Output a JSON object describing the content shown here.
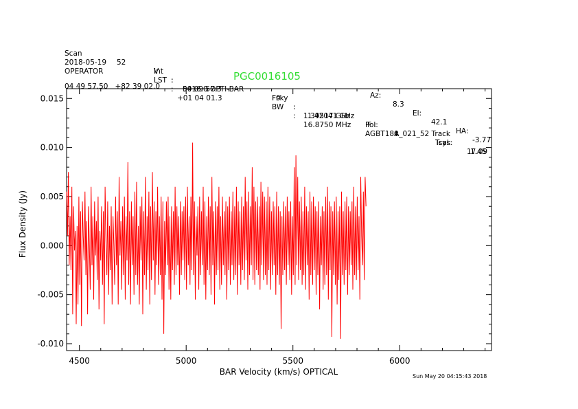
{
  "header": {
    "rows": [
      [
        "Scan",
        "52",
        "V",
        ":",
        "5416.0 OPTI-BAR",
        "F0",
        ":",
        "1.42041 GHz",
        "Pol:",
        "I",
        "Tsys:",
        "17.09"
      ],
      [
        "2018-05-19",
        "",
        "Int",
        ":",
        "00 09 57.3",
        "Fsky",
        ":",
        "1.39517 GHz",
        "IF :",
        "0",
        "Tcal:",
        "1.45"
      ],
      [
        "OPERATOR",
        "",
        "LST",
        ":",
        "+01 04 01.3",
        "BW",
        ":",
        "16.8750 MHz",
        "AGBT18A_021_52 Track",
        "",
        "",
        ""
      ]
    ],
    "coords": "04 49 57.50   +82 39 02.0",
    "source": "PGC0016105",
    "az_label": "Az:",
    "az": "8.3",
    "el_label": "El:",
    "el": "42.1",
    "ha_label": "HA:",
    "ha": "-3.77"
  },
  "timestamp": "Sun May 20 04:15:43 2018",
  "chart_data": {
    "type": "line",
    "title": "",
    "xlabel": "BAR Velocity (km/s) OPTICAL",
    "ylabel": "Flux Density (Jy)",
    "xlim": [
      4440,
      6430
    ],
    "ylim": [
      -0.0107,
      0.016
    ],
    "xticks": [
      4500,
      5000,
      5500,
      6000
    ],
    "xtick_labels": [
      "4500",
      "5000",
      "5500",
      "6000"
    ],
    "yticks": [
      -0.01,
      -0.005,
      0.0,
      0.005,
      0.01,
      0.015
    ],
    "ytick_labels": [
      "-0.010",
      "-0.005",
      "0.000",
      "0.005",
      "0.010",
      "0.015"
    ],
    "grid": false,
    "series": [
      {
        "color": "#ff0000",
        "x_start": 4440,
        "x_step": 4.1,
        "y": [
          0.0055,
          0.001,
          0.0075,
          -0.002,
          0.003,
          -0.0025,
          0.006,
          -0.007,
          0.004,
          -0.0005,
          0.0015,
          -0.008,
          0.002,
          -0.006,
          0.005,
          -0.004,
          0.0035,
          -0.0082,
          0.0045,
          0.001,
          -0.0015,
          0.0055,
          -0.003,
          0.0025,
          -0.007,
          0.004,
          0.0,
          -0.0045,
          0.006,
          -0.002,
          0.003,
          -0.0055,
          0.0045,
          -0.001,
          0.0025,
          -0.0035,
          0.005,
          -0.0065,
          0.0015,
          -0.0015,
          0.004,
          -0.004,
          0.0035,
          -0.008,
          0.006,
          0.0005,
          -0.003,
          0.0045,
          -0.005,
          0.002,
          -0.0025,
          0.004,
          -0.006,
          0.003,
          0.0,
          -0.004,
          0.005,
          -0.002,
          0.0035,
          -0.006,
          0.007,
          -0.001,
          0.0025,
          -0.0045,
          0.004,
          -0.003,
          0.005,
          -0.0055,
          0.003,
          -0.0015,
          0.0085,
          -0.004,
          0.0035,
          -0.006,
          0.0045,
          -0.002,
          0.003,
          -0.005,
          0.0055,
          -0.003,
          0.0065,
          -0.004,
          0.002,
          -0.006,
          0.004,
          -0.0015,
          0.005,
          -0.007,
          0.0035,
          -0.003,
          0.007,
          -0.0045,
          0.003,
          -0.0025,
          0.0055,
          -0.006,
          0.004,
          -0.0035,
          0.0075,
          -0.0015,
          0.0045,
          -0.005,
          0.0035,
          -0.002,
          0.006,
          -0.004,
          0.003,
          -0.003,
          0.005,
          -0.0055,
          0.0045,
          -0.009,
          0.0025,
          -0.003,
          0.0045,
          -0.002,
          0.005,
          -0.0045,
          0.003,
          -0.0055,
          0.004,
          -0.0025,
          0.0035,
          -0.004,
          0.006,
          -0.003,
          0.004,
          -0.002,
          0.003,
          -0.005,
          0.0045,
          -0.003,
          0.0035,
          -0.0015,
          0.004,
          -0.0035,
          0.005,
          -0.0045,
          0.006,
          -0.002,
          0.003,
          -0.004,
          0.005,
          -0.0025,
          0.0105,
          -0.003,
          0.0045,
          -0.0055,
          0.003,
          -0.001,
          0.004,
          -0.0045,
          0.005,
          -0.003,
          0.0035,
          -0.002,
          0.006,
          -0.004,
          0.0045,
          -0.0055,
          0.003,
          -0.0025,
          0.005,
          -0.003,
          0.004,
          -0.005,
          0.007,
          -0.002,
          0.0035,
          -0.006,
          0.0045,
          -0.003,
          0.004,
          -0.0025,
          0.006,
          -0.0045,
          0.003,
          -0.004,
          0.005,
          -0.002,
          0.0035,
          -0.003,
          0.0045,
          -0.0055,
          0.004,
          -0.0025,
          0.005,
          -0.004,
          0.0035,
          -0.002,
          0.0055,
          -0.0035,
          0.004,
          -0.003,
          0.006,
          -0.005,
          0.0045,
          -0.002,
          0.0035,
          -0.004,
          0.005,
          -0.0025,
          0.004,
          -0.0035,
          0.007,
          -0.0015,
          0.0045,
          -0.0045,
          0.0055,
          -0.003,
          0.004,
          -0.002,
          0.008,
          -0.0035,
          0.006,
          -0.004,
          0.0045,
          -0.0025,
          0.005,
          -0.003,
          0.004,
          -0.0045,
          0.0065,
          -0.002,
          0.0055,
          -0.0035,
          0.005,
          -0.003,
          0.0045,
          -0.004,
          0.006,
          -0.0025,
          0.005,
          -0.0045,
          0.0035,
          -0.003,
          0.0045,
          -0.002,
          0.004,
          -0.005,
          0.0055,
          -0.003,
          0.004,
          -0.004,
          0.0035,
          -0.0085,
          0.003,
          -0.003,
          0.0045,
          -0.0025,
          0.004,
          -0.004,
          0.005,
          -0.002,
          0.0035,
          -0.0035,
          0.0045,
          -0.005,
          0.003,
          -0.003,
          0.008,
          -0.004,
          0.0092,
          -0.002,
          0.007,
          -0.0035,
          0.0045,
          -0.0025,
          0.005,
          -0.004,
          0.0035,
          -0.003,
          0.006,
          -0.0045,
          0.004,
          -0.002,
          0.0035,
          -0.0055,
          0.0055,
          -0.003,
          0.0045,
          -0.004,
          0.005,
          -0.0025,
          0.004,
          -0.005,
          0.0035,
          -0.003,
          0.0045,
          -0.0065,
          0.003,
          -0.002,
          0.004,
          -0.0045,
          0.0035,
          -0.004,
          0.005,
          -0.003,
          0.006,
          -0.0055,
          0.0045,
          -0.0025,
          0.004,
          -0.0093,
          0.0035,
          -0.003,
          0.0045,
          -0.004,
          0.005,
          -0.006,
          0.0035,
          -0.0035,
          0.004,
          -0.0095,
          0.0055,
          -0.003,
          0.0035,
          -0.004,
          0.0045,
          -0.0025,
          0.005,
          -0.005,
          0.004,
          -0.003,
          0.0035,
          -0.002,
          0.0045,
          -0.0045,
          0.006,
          -0.003,
          0.004,
          -0.0035,
          0.005,
          -0.0025,
          0.003,
          -0.0055,
          0.007,
          0.001,
          -0.002,
          0.0055,
          -0.0035,
          0.007,
          0.004
        ]
      }
    ]
  }
}
